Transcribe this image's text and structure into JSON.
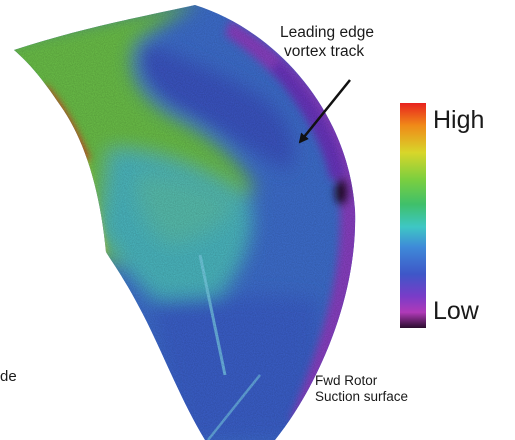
{
  "annotations": {
    "vortex_track": [
      "Leading edge",
      "vortex track"
    ],
    "surface": [
      "Fwd Rotor",
      "Suction surface"
    ],
    "left_edge_fragment": "de"
  },
  "legend": {
    "high_label": "High",
    "low_label": "Low",
    "colors": [
      "#e8221f",
      "#f08a18",
      "#d8d62a",
      "#7bcf3f",
      "#3fc06a",
      "#3ec7c4",
      "#3e8ad8",
      "#3e57c8",
      "#7a3cc8",
      "#b03ab8",
      "#2b0d2e"
    ]
  },
  "colors": {
    "blade_green": "#6cc24a",
    "blade_cyan": "#4bb9c2",
    "blade_blue": "#3e6fd0",
    "blade_violet": "#8a3fc4",
    "edge_red": "#e8381f",
    "edge_yellow": "#e0d43a",
    "arrow": "#111111"
  }
}
